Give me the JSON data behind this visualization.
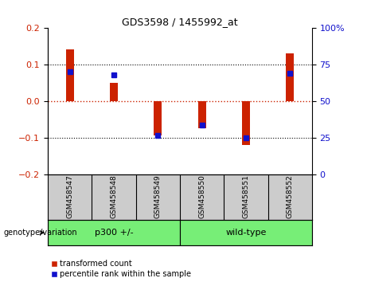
{
  "title": "GDS3598 / 1455992_at",
  "samples": [
    "GSM458547",
    "GSM458548",
    "GSM458549",
    "GSM458550",
    "GSM458551",
    "GSM458552"
  ],
  "red_values": [
    0.142,
    0.052,
    -0.092,
    -0.072,
    -0.118,
    0.132
  ],
  "blue_values": [
    0.082,
    0.072,
    -0.093,
    -0.065,
    -0.1,
    0.078
  ],
  "red_color": "#cc2200",
  "blue_color": "#1111cc",
  "ylim_left": [
    -0.2,
    0.2
  ],
  "ylim_right": [
    0,
    100
  ],
  "yticks_left": [
    -0.2,
    -0.1,
    0,
    0.1,
    0.2
  ],
  "yticks_right": [
    0,
    25,
    50,
    75,
    100
  ],
  "group_label": "genotype/variation",
  "groups_data": [
    {
      "label": "p300 +/-",
      "start": 0,
      "end": 2
    },
    {
      "label": "wild-type",
      "start": 3,
      "end": 5
    }
  ],
  "legend_items": [
    {
      "label": "transformed count",
      "color": "#cc2200"
    },
    {
      "label": "percentile rank within the sample",
      "color": "#1111cc"
    }
  ],
  "bar_width": 0.18,
  "zero_line_color": "#cc2200",
  "dotted_line_color": "black",
  "plot_bg_color": "#ffffff",
  "label_bg_color": "#cccccc",
  "group_bg_color": "#77ee77"
}
